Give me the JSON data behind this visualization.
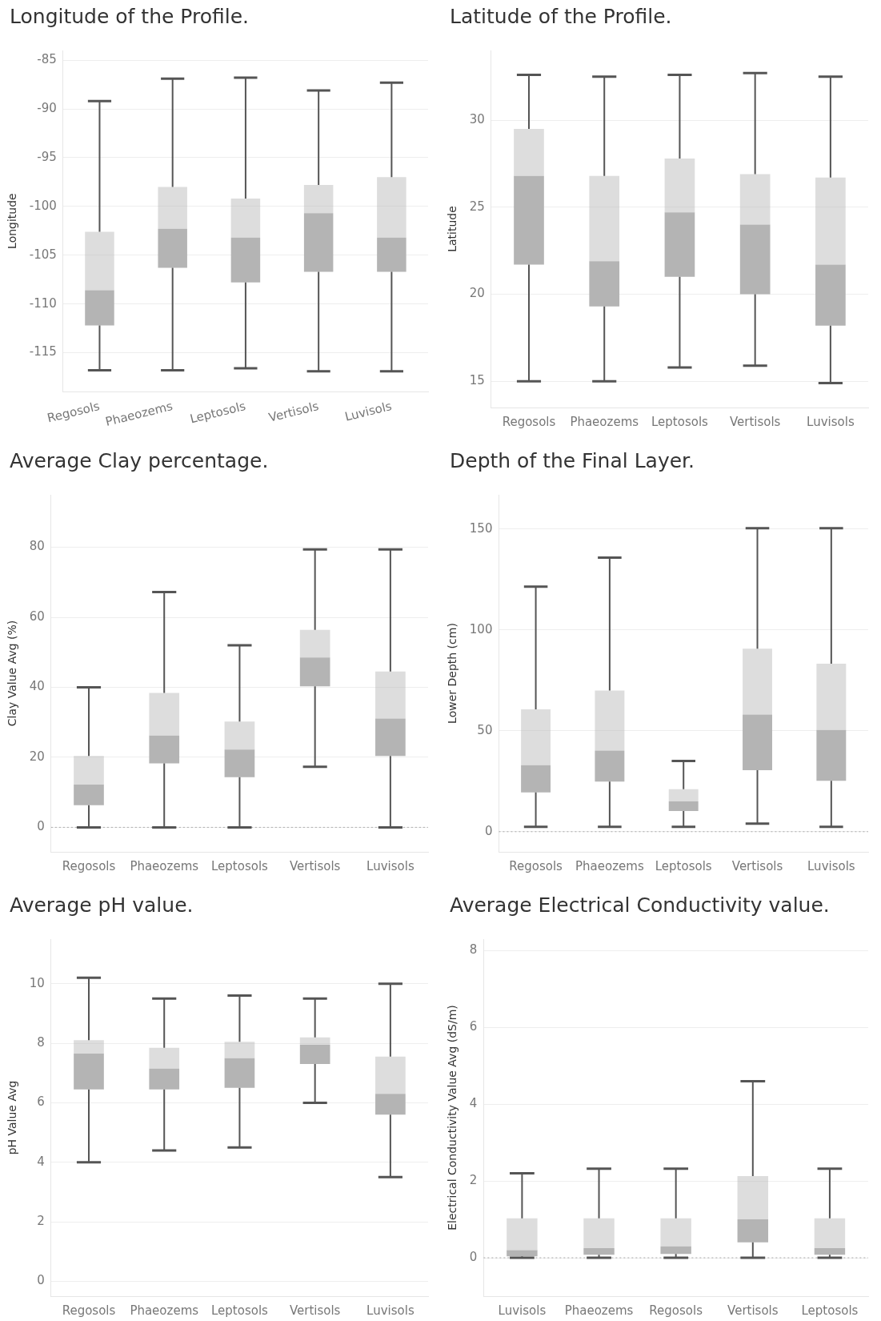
{
  "chart_data": [
    {
      "type": "box",
      "title": "Longitude of the Profile.",
      "ylabel": "Longitude",
      "categories": [
        "Regosols",
        "Phaeozems",
        "Leptosols",
        "Vertisols",
        "Luvisols"
      ],
      "ylim": [
        -119,
        -84
      ],
      "yticks": [
        -85,
        -90,
        -95,
        -100,
        -105,
        -110,
        -115
      ],
      "grid": "y",
      "series": [
        {
          "color": "#b4b4b4",
          "boxes": [
            {
              "low": -116.8,
              "q1": -112.2,
              "median": -108.6,
              "q3": -102.6,
              "high": -89.2
            },
            {
              "low": -116.8,
              "q1": -106.3,
              "median": -102.3,
              "q3": -98.0,
              "high": -86.9
            },
            {
              "low": -116.6,
              "q1": -107.8,
              "median": -103.2,
              "q3": -99.2,
              "high": -86.8
            },
            {
              "low": -116.9,
              "q1": -106.7,
              "median": -100.7,
              "q3": -97.8,
              "high": -88.1
            },
            {
              "low": -116.9,
              "q1": -106.7,
              "median": -103.2,
              "q3": -97.0,
              "high": -87.3
            }
          ]
        }
      ]
    },
    {
      "type": "box",
      "title": "Latitude of the Profile.",
      "ylabel": "Latitude",
      "categories": [
        "Regosols",
        "Phaeozems",
        "Leptosols",
        "Vertisols",
        "Luvisols"
      ],
      "ylim": [
        13.5,
        34
      ],
      "yticks": [
        15,
        20,
        25,
        30
      ],
      "grid": "y",
      "series": [
        {
          "color": "#b4b4b4",
          "boxes": [
            {
              "low": 15.0,
              "q1": 21.7,
              "median": 26.8,
              "q3": 29.5,
              "high": 32.6
            },
            {
              "low": 15.0,
              "q1": 19.3,
              "median": 21.9,
              "q3": 26.8,
              "high": 32.5
            },
            {
              "low": 15.8,
              "q1": 21.0,
              "median": 24.7,
              "q3": 27.8,
              "high": 32.6
            },
            {
              "low": 15.9,
              "q1": 20.0,
              "median": 24.0,
              "q3": 26.9,
              "high": 32.7
            },
            {
              "low": 14.9,
              "q1": 18.2,
              "median": 21.7,
              "q3": 26.7,
              "high": 32.5
            }
          ]
        }
      ]
    },
    {
      "type": "box",
      "title": "Average Clay percentage.",
      "ylabel": "Clay Value Avg (%)",
      "categories": [
        "Regosols",
        "Phaeozems",
        "Leptosols",
        "Vertisols",
        "Luvisols"
      ],
      "ylim": [
        -7,
        95
      ],
      "yticks": [
        0,
        20,
        40,
        60,
        80
      ],
      "grid": "y",
      "ref_lines": [
        {
          "axis": "y",
          "value": 0,
          "line_style": "dotted",
          "color": "#aaaaaa"
        }
      ],
      "series": [
        {
          "color": "#b4b4b4",
          "boxes": [
            {
              "low": 0,
              "q1": 6.3,
              "median": 12.2,
              "q3": 20.4,
              "high": 40
            },
            {
              "low": 0,
              "q1": 18.3,
              "median": 26.2,
              "q3": 38.4,
              "high": 67.2
            },
            {
              "low": 0,
              "q1": 14.3,
              "median": 22.2,
              "q3": 30.2,
              "high": 52
            },
            {
              "low": 17.3,
              "q1": 40.3,
              "median": 48.5,
              "q3": 56.4,
              "high": 79.4
            },
            {
              "low": 0,
              "q1": 20.4,
              "median": 31.1,
              "q3": 44.5,
              "high": 79.4
            }
          ]
        }
      ]
    },
    {
      "type": "box",
      "title": "Depth of the Final Layer.",
      "ylabel": "Lower Depth (cm)",
      "categories": [
        "Regosols",
        "Phaeozems",
        "Leptosols",
        "Vertisols",
        "Luvisols"
      ],
      "ylim": [
        -10,
        167
      ],
      "yticks": [
        0,
        50,
        100,
        150
      ],
      "grid": "y",
      "ref_lines": [
        {
          "axis": "y",
          "value": 0,
          "line_style": "dotted",
          "color": "#aaaaaa"
        }
      ],
      "series": [
        {
          "color": "#b4b4b4",
          "boxes": [
            {
              "low": 2.4,
              "q1": 19.5,
              "median": 33,
              "q3": 60.6,
              "high": 121.5
            },
            {
              "low": 2.4,
              "q1": 24.8,
              "median": 40.2,
              "q3": 70,
              "high": 135.8
            },
            {
              "low": 2.4,
              "q1": 10.2,
              "median": 15,
              "q3": 21.1,
              "high": 35
            },
            {
              "low": 4,
              "q1": 30.5,
              "median": 58.1,
              "q3": 90.7,
              "high": 150.4
            },
            {
              "low": 2.4,
              "q1": 25.2,
              "median": 50.4,
              "q3": 83.3,
              "high": 150.4
            }
          ]
        }
      ]
    },
    {
      "type": "box",
      "title": "Average pH value.",
      "ylabel": "pH Value Avg",
      "categories": [
        "Regosols",
        "Phaeozems",
        "Leptosols",
        "Vertisols",
        "Luvisols"
      ],
      "ylim": [
        -0.5,
        11.5
      ],
      "yticks": [
        0,
        2,
        4,
        6,
        8,
        10
      ],
      "grid": "y",
      "series": [
        {
          "color": "#b4b4b4",
          "boxes": [
            {
              "low": 4.0,
              "q1": 6.45,
              "median": 7.65,
              "q3": 8.1,
              "high": 10.2
            },
            {
              "low": 4.4,
              "q1": 6.45,
              "median": 7.15,
              "q3": 7.85,
              "high": 9.5
            },
            {
              "low": 4.5,
              "q1": 6.5,
              "median": 7.5,
              "q3": 8.05,
              "high": 9.6
            },
            {
              "low": 6.0,
              "q1": 7.3,
              "median": 7.95,
              "q3": 8.2,
              "high": 9.5
            },
            {
              "low": 3.5,
              "q1": 5.6,
              "median": 6.3,
              "q3": 7.55,
              "high": 10.0
            }
          ]
        }
      ]
    },
    {
      "type": "box",
      "title": "Average Electrical Conductivity value.",
      "ylabel": "Electrical Conductivity Value Avg (dS/m)",
      "categories": [
        "Luvisols",
        "Phaeozems",
        "Regosols",
        "Vertisols",
        "Leptosols"
      ],
      "ylim": [
        -1,
        8.3
      ],
      "yticks": [
        0,
        2,
        4,
        6,
        8
      ],
      "grid": "y",
      "ref_lines": [
        {
          "axis": "y",
          "value": 0,
          "line_style": "dotted",
          "color": "#aaaaaa"
        }
      ],
      "series": [
        {
          "color": "#b4b4b4",
          "boxes": [
            {
              "low": 0,
              "q1": 0.04,
              "median": 0.2,
              "q3": 1.03,
              "high": 2.2
            },
            {
              "low": 0,
              "q1": 0.08,
              "median": 0.25,
              "q3": 1.03,
              "high": 2.32
            },
            {
              "low": 0,
              "q1": 0.1,
              "median": 0.3,
              "q3": 1.03,
              "high": 2.32
            },
            {
              "low": 0,
              "q1": 0.4,
              "median": 1.0,
              "q3": 2.13,
              "high": 4.6
            },
            {
              "low": 0,
              "q1": 0.08,
              "median": 0.25,
              "q3": 1.03,
              "high": 2.32
            }
          ]
        }
      ]
    }
  ]
}
